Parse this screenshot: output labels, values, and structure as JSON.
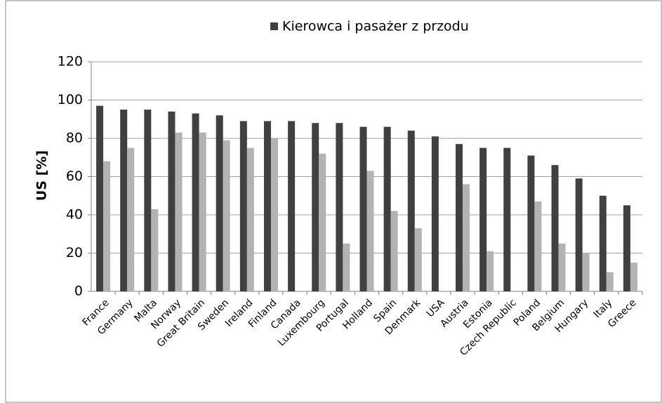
{
  "chart_data": {
    "type": "bar",
    "categories": [
      "France",
      "Germany",
      "Malta",
      "Norway",
      "Great Britain",
      "Sweden",
      "Ireland",
      "Finland",
      "Canada",
      "Luxembourg",
      "Portugal",
      "Holland",
      "Spain",
      "Denmark",
      "USA",
      "Austria",
      "Estonia",
      "Czech Republic",
      "Poland",
      "Belgium",
      "Hungary",
      "Italy",
      "Greece"
    ],
    "series": [
      {
        "name": "Kierowca i pasażer z przodu",
        "color": "#404040",
        "values": [
          97,
          95,
          95,
          94,
          93,
          92,
          89,
          89,
          89,
          88,
          88,
          86,
          86,
          84,
          81,
          77,
          75,
          75,
          71,
          66,
          59,
          50,
          45
        ]
      },
      {
        "color": "#b3b3b3",
        "values": [
          68,
          75,
          43,
          83,
          83,
          79,
          75,
          80,
          null,
          72,
          25,
          63,
          42,
          33,
          null,
          56,
          21,
          null,
          47,
          25,
          20,
          10,
          15
        ]
      }
    ],
    "y_label": "US [%]",
    "ylim": [
      0,
      120
    ],
    "yticks": [
      0,
      20,
      40,
      60,
      80,
      100,
      120
    ],
    "grid": true,
    "legend": "top"
  }
}
